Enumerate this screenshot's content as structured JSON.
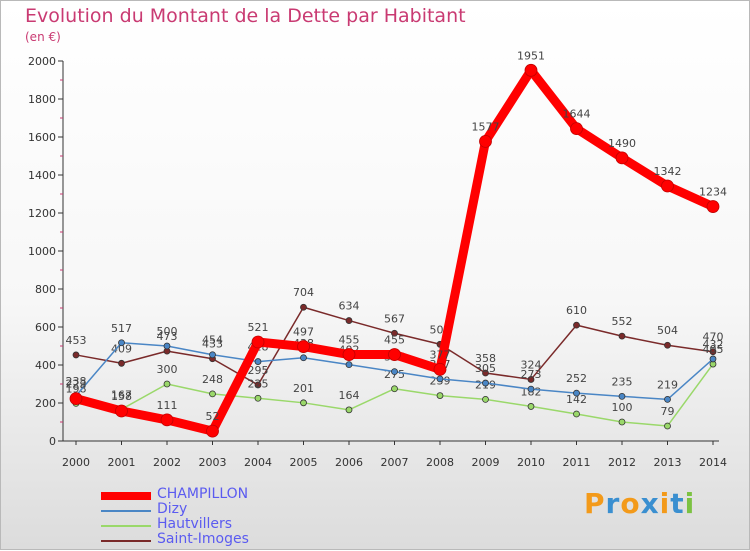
{
  "title": "Evolution du Montant de la Dette par Habitant",
  "subtitle": "(en €)",
  "brand": [
    "P",
    "r",
    "o",
    "x",
    "i",
    "t",
    "i"
  ],
  "brand_colors": [
    "#f39a1a",
    "#3a8fd0",
    "#f39a1a",
    "#3a8fd0",
    "#f39a1a",
    "#3a8fd0",
    "#7cc242"
  ],
  "chart_data": {
    "type": "line",
    "title": "Evolution du Montant de la Dette par Habitant",
    "ylabel": "(en €)",
    "xlabel": "",
    "x": [
      "2000",
      "2001",
      "2002",
      "2003",
      "2004",
      "2005",
      "2006",
      "2007",
      "2008",
      "2009",
      "2010",
      "2011",
      "2012",
      "2013",
      "2014"
    ],
    "ylim": [
      0,
      2000
    ],
    "yticks": [
      "0",
      "200",
      "400",
      "600",
      "800",
      "1000",
      "1200",
      "1400",
      "1600",
      "1800",
      "2000"
    ],
    "grid": false,
    "legend_position": "bottom-left",
    "series": [
      {
        "name": "Saint-Imoges",
        "color": "#7a2a2a",
        "values": [
          453,
          409,
          473,
          433,
          295,
          704,
          634,
          567,
          509,
          358,
          324,
          610,
          552,
          504,
          470
        ]
      },
      {
        "name": "Hautvillers",
        "color": "#9ad86a",
        "values": [
          198,
          167,
          300,
          248,
          225,
          201,
          164,
          275,
          239,
          219,
          182,
          142,
          100,
          79,
          405
        ]
      },
      {
        "name": "Dizy",
        "color": "#4a86c5",
        "values": [
          238,
          517,
          500,
          454,
          418,
          438,
          402,
          365,
          327,
          305,
          273,
          252,
          235,
          219,
          432
        ]
      },
      {
        "name": "CHAMPILLON",
        "color": "#ff0000",
        "values": [
          223,
          158,
          111,
          52,
          521,
          497,
          455,
          455,
          377,
          1577,
          1951,
          1644,
          1490,
          1342,
          1234
        ]
      }
    ],
    "legend_order": [
      "CHAMPILLON",
      "Dizy",
      "Hautvillers",
      "Saint-Imoges"
    ]
  }
}
